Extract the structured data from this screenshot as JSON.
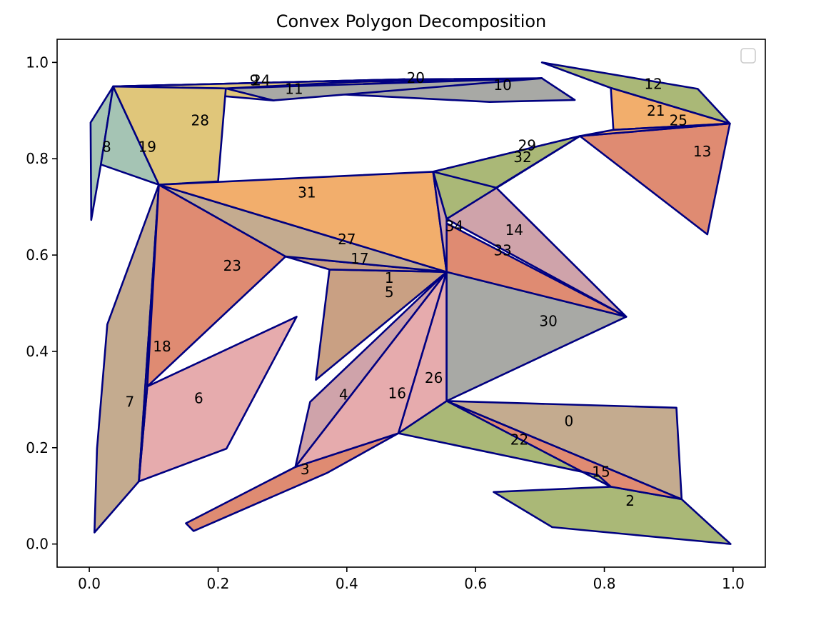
{
  "chart_data": {
    "type": "polygon",
    "title": "Convex Polygon Decomposition",
    "xlabel": "",
    "ylabel": "",
    "xlim": [
      -0.05,
      1.05
    ],
    "ylim": [
      -0.048,
      1.048
    ],
    "x_ticks": [
      "0.0",
      "0.2",
      "0.4",
      "0.6",
      "0.8",
      "1.0"
    ],
    "y_ticks": [
      "0.0",
      "0.2",
      "0.4",
      "0.6",
      "0.8",
      "1.0"
    ],
    "grid": false,
    "legend": {
      "position": "top-right",
      "entries": []
    },
    "edge_color": "#000080",
    "palette": [
      "#c4ab8f",
      "#aab877",
      "#f2ae6c",
      "#df8b72",
      "#cfa3aa",
      "#e6abad",
      "#a8a9a5",
      "#e0c67a",
      "#a5c4b4",
      "#c9a083"
    ],
    "polygons": [
      {
        "id": "0",
        "fill": "#c4ab8f",
        "label_at": [
          0.745,
          0.255
        ],
        "points": [
          [
            0.555,
            0.297
          ],
          [
            0.912,
            0.283
          ],
          [
            0.92,
            0.093
          ]
        ]
      },
      {
        "id": "1",
        "fill": "#c9a083",
        "label_at": [
          0.466,
          0.553
        ],
        "points": [
          [
            0.373,
            0.57
          ],
          [
            0.555,
            0.565
          ],
          [
            0.464,
            0.515
          ]
        ]
      },
      {
        "id": "2",
        "fill": "#aab877",
        "label_at": [
          0.84,
          0.09
        ],
        "points": [
          [
            0.628,
            0.108
          ],
          [
            0.81,
            0.119
          ],
          [
            0.92,
            0.093
          ],
          [
            0.996,
            0.0
          ],
          [
            0.719,
            0.035
          ]
        ]
      },
      {
        "id": "3",
        "fill": "#df8b72",
        "label_at": [
          0.335,
          0.155
        ],
        "points": [
          [
            0.15,
            0.043
          ],
          [
            0.32,
            0.16
          ],
          [
            0.48,
            0.23
          ],
          [
            0.37,
            0.148
          ],
          [
            0.162,
            0.027
          ]
        ]
      },
      {
        "id": "4",
        "fill": "#cfa3aa",
        "label_at": [
          0.395,
          0.31
        ],
        "points": [
          [
            0.32,
            0.16
          ],
          [
            0.343,
            0.295
          ],
          [
            0.555,
            0.565
          ]
        ]
      },
      {
        "id": "5",
        "fill": "#c9a083",
        "label_at": [
          0.466,
          0.523
        ],
        "points": [
          [
            0.373,
            0.57
          ],
          [
            0.555,
            0.565
          ],
          [
            0.352,
            0.341
          ]
        ]
      },
      {
        "id": "6",
        "fill": "#e6abad",
        "label_at": [
          0.17,
          0.303
        ],
        "points": [
          [
            0.09,
            0.327
          ],
          [
            0.322,
            0.472
          ],
          [
            0.213,
            0.198
          ],
          [
            0.077,
            0.13
          ]
        ]
      },
      {
        "id": "7",
        "fill": "#c4ab8f",
        "label_at": [
          0.063,
          0.295
        ],
        "points": [
          [
            0.108,
            0.746
          ],
          [
            0.028,
            0.456
          ],
          [
            0.012,
            0.198
          ],
          [
            0.008,
            0.024
          ],
          [
            0.077,
            0.13
          ]
        ]
      },
      {
        "id": "8",
        "fill": "#a5c4b4",
        "label_at": [
          0.027,
          0.825
        ],
        "points": [
          [
            0.002,
            0.875
          ],
          [
            0.037,
            0.95
          ],
          [
            0.018,
            0.788
          ],
          [
            0.003,
            0.673
          ]
        ]
      },
      {
        "id": "9",
        "fill": "#e0c67a",
        "label_at": [
          0.256,
          0.963
        ],
        "points": [
          [
            0.037,
            0.95
          ],
          [
            0.286,
            0.921
          ],
          [
            0.49,
            0.965
          ]
        ]
      },
      {
        "id": "10",
        "fill": "#a8a9a5",
        "label_at": [
          0.642,
          0.953
        ],
        "points": [
          [
            0.212,
            0.946
          ],
          [
            0.703,
            0.967
          ],
          [
            0.754,
            0.922
          ],
          [
            0.622,
            0.918
          ]
        ]
      },
      {
        "id": "11",
        "fill": "#a8a9a5",
        "label_at": [
          0.318,
          0.945
        ],
        "points": [
          [
            0.212,
            0.946
          ],
          [
            0.286,
            0.921
          ],
          [
            0.703,
            0.967
          ]
        ]
      },
      {
        "id": "12",
        "fill": "#aab877",
        "label_at": [
          0.876,
          0.955
        ],
        "points": [
          [
            0.703,
            1.0
          ],
          [
            0.945,
            0.945
          ],
          [
            0.995,
            0.873
          ],
          [
            0.81,
            0.947
          ]
        ]
      },
      {
        "id": "13",
        "fill": "#df8b72",
        "label_at": [
          0.952,
          0.815
        ],
        "points": [
          [
            0.762,
            0.847
          ],
          [
            0.995,
            0.873
          ],
          [
            0.96,
            0.643
          ]
        ]
      },
      {
        "id": "14",
        "fill": "#cfa3aa",
        "label_at": [
          0.66,
          0.652
        ],
        "points": [
          [
            0.632,
            0.74
          ],
          [
            0.555,
            0.675
          ],
          [
            0.834,
            0.472
          ]
        ]
      },
      {
        "id": "15",
        "fill": "#df8b72",
        "label_at": [
          0.795,
          0.15
        ],
        "points": [
          [
            0.555,
            0.297
          ],
          [
            0.81,
            0.119
          ],
          [
            0.92,
            0.093
          ]
        ]
      },
      {
        "id": "16",
        "fill": "#e6abad",
        "label_at": [
          0.478,
          0.313
        ],
        "points": [
          [
            0.32,
            0.16
          ],
          [
            0.555,
            0.565
          ],
          [
            0.48,
            0.23
          ]
        ]
      },
      {
        "id": "17",
        "fill": "#c9a083",
        "label_at": [
          0.42,
          0.593
        ],
        "points": [
          [
            0.305,
            0.597
          ],
          [
            0.373,
            0.57
          ],
          [
            0.555,
            0.565
          ]
        ]
      },
      {
        "id": "18",
        "fill": "#cfa3aa",
        "label_at": [
          0.113,
          0.41
        ],
        "points": [
          [
            0.108,
            0.746
          ],
          [
            0.09,
            0.327
          ],
          [
            0.077,
            0.13
          ]
        ]
      },
      {
        "id": "19",
        "fill": "#a5c4b4",
        "label_at": [
          0.09,
          0.825
        ],
        "points": [
          [
            0.037,
            0.95
          ],
          [
            0.108,
            0.746
          ],
          [
            0.018,
            0.788
          ]
        ]
      },
      {
        "id": "20",
        "fill": "#e0c67a",
        "label_at": [
          0.507,
          0.968
        ],
        "points": [
          [
            0.037,
            0.95
          ],
          [
            0.49,
            0.965
          ],
          [
            0.703,
            0.967
          ]
        ]
      },
      {
        "id": "21",
        "fill": "#f2ae6c",
        "label_at": [
          0.88,
          0.9
        ],
        "points": [
          [
            0.81,
            0.947
          ],
          [
            0.995,
            0.873
          ],
          [
            0.814,
            0.86
          ]
        ]
      },
      {
        "id": "22",
        "fill": "#aab877",
        "label_at": [
          0.668,
          0.217
        ],
        "points": [
          [
            0.555,
            0.297
          ],
          [
            0.48,
            0.23
          ],
          [
            0.79,
            0.143
          ],
          [
            0.81,
            0.119
          ]
        ]
      },
      {
        "id": "23",
        "fill": "#df8b72",
        "label_at": [
          0.222,
          0.578
        ],
        "points": [
          [
            0.108,
            0.746
          ],
          [
            0.305,
            0.597
          ],
          [
            0.09,
            0.327
          ]
        ]
      },
      {
        "id": "24",
        "fill": "#e0c67a",
        "label_at": [
          0.267,
          0.963
        ],
        "points": [
          [
            0.037,
            0.95
          ],
          [
            0.212,
            0.946
          ],
          [
            0.49,
            0.965
          ]
        ]
      },
      {
        "id": "25",
        "fill": "#f2ae6c",
        "label_at": [
          0.915,
          0.88
        ],
        "points": [
          [
            0.814,
            0.86
          ],
          [
            0.995,
            0.873
          ],
          [
            0.762,
            0.847
          ]
        ]
      },
      {
        "id": "26",
        "fill": "#e6abad",
        "label_at": [
          0.535,
          0.345
        ],
        "points": [
          [
            0.555,
            0.565
          ],
          [
            0.555,
            0.297
          ],
          [
            0.48,
            0.23
          ]
        ]
      },
      {
        "id": "27",
        "fill": "#c4ab8f",
        "label_at": [
          0.4,
          0.633
        ],
        "points": [
          [
            0.108,
            0.746
          ],
          [
            0.555,
            0.565
          ],
          [
            0.305,
            0.597
          ]
        ]
      },
      {
        "id": "28",
        "fill": "#e0c67a",
        "label_at": [
          0.172,
          0.88
        ],
        "points": [
          [
            0.037,
            0.95
          ],
          [
            0.212,
            0.946
          ],
          [
            0.2,
            0.753
          ],
          [
            0.108,
            0.746
          ]
        ]
      },
      {
        "id": "29",
        "fill": "#aab877",
        "label_at": [
          0.68,
          0.828
        ],
        "points": [
          [
            0.534,
            0.773
          ],
          [
            0.762,
            0.847
          ],
          [
            0.555,
            0.675
          ]
        ]
      },
      {
        "id": "30",
        "fill": "#a8a9a5",
        "label_at": [
          0.713,
          0.463
        ],
        "points": [
          [
            0.555,
            0.565
          ],
          [
            0.834,
            0.472
          ],
          [
            0.555,
            0.297
          ]
        ]
      },
      {
        "id": "31",
        "fill": "#f2ae6c",
        "label_at": [
          0.338,
          0.73
        ],
        "points": [
          [
            0.108,
            0.746
          ],
          [
            0.534,
            0.773
          ],
          [
            0.555,
            0.565
          ]
        ]
      },
      {
        "id": "32",
        "fill": "#aab877",
        "label_at": [
          0.673,
          0.803
        ],
        "points": [
          [
            0.534,
            0.773
          ],
          [
            0.762,
            0.847
          ],
          [
            0.632,
            0.74
          ]
        ]
      },
      {
        "id": "33",
        "fill": "#df8b72",
        "label_at": [
          0.642,
          0.61
        ],
        "points": [
          [
            0.546,
            0.672
          ],
          [
            0.834,
            0.472
          ],
          [
            0.555,
            0.565
          ]
        ]
      },
      {
        "id": "34",
        "fill": "#cfa3aa",
        "label_at": [
          0.567,
          0.66
        ],
        "points": [
          [
            0.534,
            0.773
          ],
          [
            0.555,
            0.675
          ],
          [
            0.555,
            0.565
          ]
        ]
      }
    ]
  }
}
